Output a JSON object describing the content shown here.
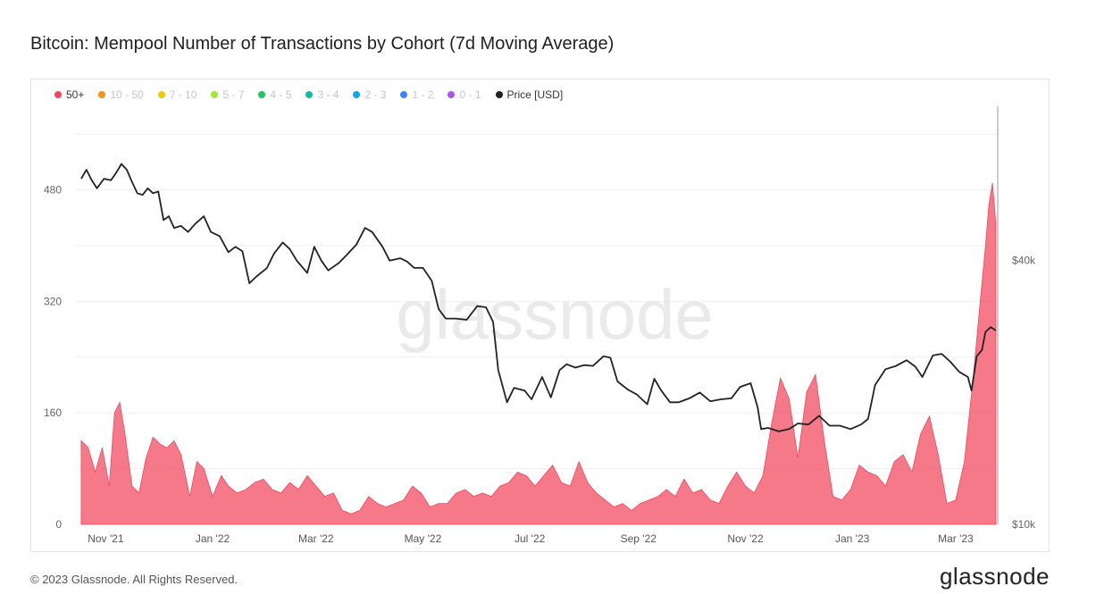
{
  "title": "Bitcoin: Mempool Number of Transactions by Cohort (7d Moving Average)",
  "footer": "© 2023 Glassnode. All Rights Reserved.",
  "brand": "glassnode",
  "watermark": "glassnode",
  "legend": [
    {
      "label": "50+",
      "color": "#f2455c",
      "active": true
    },
    {
      "label": "10 - 50",
      "color": "#f7931a",
      "active": false
    },
    {
      "label": "7 - 10",
      "color": "#f2c70c",
      "active": false
    },
    {
      "label": "5 - 7",
      "color": "#a3e635",
      "active": false
    },
    {
      "label": "4 - 5",
      "color": "#22c55e",
      "active": false
    },
    {
      "label": "3 - 4",
      "color": "#14b8a6",
      "active": false
    },
    {
      "label": "2 - 3",
      "color": "#0ea5e9",
      "active": false
    },
    {
      "label": "1 - 2",
      "color": "#3b82f6",
      "active": false
    },
    {
      "label": "0 - 1",
      "color": "#a855f7",
      "active": false
    },
    {
      "label": "Price [USD]",
      "color": "#222222",
      "active": true
    }
  ],
  "chart_data": {
    "type": "area",
    "grid": true,
    "x_range": [
      "2021-10-15",
      "2023-03-25"
    ],
    "x_ticks": [
      {
        "date": "2021-11-01",
        "label": "Nov '21"
      },
      {
        "date": "2022-01-01",
        "label": "Jan '22"
      },
      {
        "date": "2022-03-01",
        "label": "Mar '22"
      },
      {
        "date": "2022-05-01",
        "label": "May '22"
      },
      {
        "date": "2022-07-01",
        "label": "Jul '22"
      },
      {
        "date": "2022-09-01",
        "label": "Sep '22"
      },
      {
        "date": "2022-11-01",
        "label": "Nov '22"
      },
      {
        "date": "2023-01-01",
        "label": "Jan '23"
      },
      {
        "date": "2023-03-01",
        "label": "Mar '23"
      }
    ],
    "y_left": {
      "range": [
        0,
        600
      ],
      "ticks": [
        0,
        160,
        320,
        480
      ],
      "tick_labels": [
        "0",
        "160",
        "320",
        "480"
      ]
    },
    "y_right": {
      "scale": "log",
      "range": [
        10000,
        90000
      ],
      "ticks": [
        10000,
        40000
      ],
      "tick_labels": [
        "$10k",
        "$40k"
      ]
    },
    "series": [
      {
        "name": "50+",
        "axis": "left",
        "color": "#f2455c",
        "points": [
          [
            "2021-10-18",
            120
          ],
          [
            "2021-10-22",
            110
          ],
          [
            "2021-10-26",
            75
          ],
          [
            "2021-10-30",
            110
          ],
          [
            "2021-11-03",
            55
          ],
          [
            "2021-11-06",
            160
          ],
          [
            "2021-11-09",
            175
          ],
          [
            "2021-11-12",
            130
          ],
          [
            "2021-11-16",
            55
          ],
          [
            "2021-11-20",
            45
          ],
          [
            "2021-11-24",
            95
          ],
          [
            "2021-11-28",
            125
          ],
          [
            "2021-12-02",
            115
          ],
          [
            "2021-12-06",
            110
          ],
          [
            "2021-12-10",
            120
          ],
          [
            "2021-12-14",
            100
          ],
          [
            "2021-12-19",
            40
          ],
          [
            "2021-12-23",
            90
          ],
          [
            "2021-12-27",
            80
          ],
          [
            "2022-01-01",
            40
          ],
          [
            "2022-01-06",
            70
          ],
          [
            "2022-01-10",
            55
          ],
          [
            "2022-01-15",
            45
          ],
          [
            "2022-01-20",
            50
          ],
          [
            "2022-01-25",
            60
          ],
          [
            "2022-01-30",
            65
          ],
          [
            "2022-02-04",
            50
          ],
          [
            "2022-02-09",
            45
          ],
          [
            "2022-02-14",
            60
          ],
          [
            "2022-02-19",
            50
          ],
          [
            "2022-02-24",
            70
          ],
          [
            "2022-03-01",
            55
          ],
          [
            "2022-03-06",
            40
          ],
          [
            "2022-03-11",
            45
          ],
          [
            "2022-03-16",
            20
          ],
          [
            "2022-03-21",
            15
          ],
          [
            "2022-03-26",
            20
          ],
          [
            "2022-03-31",
            40
          ],
          [
            "2022-04-05",
            30
          ],
          [
            "2022-04-10",
            25
          ],
          [
            "2022-04-15",
            30
          ],
          [
            "2022-04-20",
            35
          ],
          [
            "2022-04-25",
            55
          ],
          [
            "2022-04-30",
            45
          ],
          [
            "2022-05-05",
            25
          ],
          [
            "2022-05-10",
            30
          ],
          [
            "2022-05-15",
            30
          ],
          [
            "2022-05-20",
            45
          ],
          [
            "2022-05-25",
            50
          ],
          [
            "2022-05-30",
            40
          ],
          [
            "2022-06-04",
            45
          ],
          [
            "2022-06-09",
            40
          ],
          [
            "2022-06-14",
            55
          ],
          [
            "2022-06-19",
            60
          ],
          [
            "2022-06-24",
            75
          ],
          [
            "2022-06-29",
            70
          ],
          [
            "2022-07-04",
            55
          ],
          [
            "2022-07-09",
            70
          ],
          [
            "2022-07-14",
            85
          ],
          [
            "2022-07-19",
            60
          ],
          [
            "2022-07-24",
            55
          ],
          [
            "2022-07-29",
            90
          ],
          [
            "2022-08-03",
            60
          ],
          [
            "2022-08-08",
            45
          ],
          [
            "2022-08-13",
            35
          ],
          [
            "2022-08-18",
            25
          ],
          [
            "2022-08-23",
            30
          ],
          [
            "2022-08-28",
            20
          ],
          [
            "2022-09-02",
            30
          ],
          [
            "2022-09-07",
            35
          ],
          [
            "2022-09-12",
            40
          ],
          [
            "2022-09-17",
            50
          ],
          [
            "2022-09-22",
            40
          ],
          [
            "2022-09-27",
            65
          ],
          [
            "2022-10-02",
            45
          ],
          [
            "2022-10-07",
            50
          ],
          [
            "2022-10-12",
            35
          ],
          [
            "2022-10-17",
            30
          ],
          [
            "2022-10-22",
            55
          ],
          [
            "2022-10-27",
            75
          ],
          [
            "2022-11-01",
            55
          ],
          [
            "2022-11-06",
            45
          ],
          [
            "2022-11-11",
            70
          ],
          [
            "2022-11-16",
            145
          ],
          [
            "2022-11-21",
            210
          ],
          [
            "2022-11-26",
            180
          ],
          [
            "2022-12-01",
            95
          ],
          [
            "2022-12-06",
            190
          ],
          [
            "2022-12-11",
            215
          ],
          [
            "2022-12-16",
            120
          ],
          [
            "2022-12-21",
            40
          ],
          [
            "2022-12-26",
            35
          ],
          [
            "2022-12-31",
            50
          ],
          [
            "2023-01-05",
            85
          ],
          [
            "2023-01-10",
            75
          ],
          [
            "2023-01-15",
            70
          ],
          [
            "2023-01-20",
            55
          ],
          [
            "2023-01-25",
            90
          ],
          [
            "2023-01-30",
            100
          ],
          [
            "2023-02-04",
            75
          ],
          [
            "2023-02-09",
            130
          ],
          [
            "2023-02-14",
            155
          ],
          [
            "2023-02-19",
            100
          ],
          [
            "2023-02-24",
            30
          ],
          [
            "2023-03-01",
            35
          ],
          [
            "2023-03-06",
            90
          ],
          [
            "2023-03-11",
            210
          ],
          [
            "2023-03-15",
            320
          ],
          [
            "2023-03-18",
            400
          ],
          [
            "2023-03-20",
            460
          ],
          [
            "2023-03-22",
            490
          ],
          [
            "2023-03-24",
            430
          ]
        ]
      },
      {
        "name": "Price [USD]",
        "axis": "right",
        "color": "#222222",
        "points": [
          [
            "2021-10-18",
            61500
          ],
          [
            "2021-10-21",
            64500
          ],
          [
            "2021-10-24",
            61000
          ],
          [
            "2021-10-27",
            58500
          ],
          [
            "2021-10-31",
            61500
          ],
          [
            "2021-11-04",
            61000
          ],
          [
            "2021-11-07",
            63500
          ],
          [
            "2021-11-10",
            66500
          ],
          [
            "2021-11-13",
            64500
          ],
          [
            "2021-11-16",
            60500
          ],
          [
            "2021-11-19",
            57000
          ],
          [
            "2021-11-22",
            56500
          ],
          [
            "2021-11-25",
            58500
          ],
          [
            "2021-11-28",
            57000
          ],
          [
            "2021-12-01",
            57500
          ],
          [
            "2021-12-04",
            49500
          ],
          [
            "2021-12-07",
            50500
          ],
          [
            "2021-12-10",
            47500
          ],
          [
            "2021-12-14",
            48000
          ],
          [
            "2021-12-18",
            46500
          ],
          [
            "2021-12-22",
            48500
          ],
          [
            "2021-12-27",
            50500
          ],
          [
            "2021-12-31",
            46500
          ],
          [
            "2022-01-05",
            45500
          ],
          [
            "2022-01-10",
            41800
          ],
          [
            "2022-01-14",
            43000
          ],
          [
            "2022-01-18",
            42000
          ],
          [
            "2022-01-22",
            35500
          ],
          [
            "2022-01-26",
            36800
          ],
          [
            "2022-02-01",
            38500
          ],
          [
            "2022-02-05",
            41500
          ],
          [
            "2022-02-10",
            44000
          ],
          [
            "2022-02-14",
            42500
          ],
          [
            "2022-02-18",
            40000
          ],
          [
            "2022-02-24",
            37500
          ],
          [
            "2022-02-28",
            43000
          ],
          [
            "2022-03-04",
            40000
          ],
          [
            "2022-03-08",
            38000
          ],
          [
            "2022-03-14",
            39500
          ],
          [
            "2022-03-18",
            41000
          ],
          [
            "2022-03-24",
            43500
          ],
          [
            "2022-03-29",
            47500
          ],
          [
            "2022-04-02",
            46500
          ],
          [
            "2022-04-08",
            43000
          ],
          [
            "2022-04-12",
            40000
          ],
          [
            "2022-04-18",
            40500
          ],
          [
            "2022-04-22",
            39800
          ],
          [
            "2022-04-26",
            38500
          ],
          [
            "2022-05-01",
            38500
          ],
          [
            "2022-05-06",
            36000
          ],
          [
            "2022-05-10",
            31000
          ],
          [
            "2022-05-14",
            29500
          ],
          [
            "2022-05-20",
            29500
          ],
          [
            "2022-05-26",
            29300
          ],
          [
            "2022-06-01",
            31500
          ],
          [
            "2022-06-06",
            31300
          ],
          [
            "2022-06-10",
            29000
          ],
          [
            "2022-06-13",
            22500
          ],
          [
            "2022-06-18",
            19000
          ],
          [
            "2022-06-22",
            20500
          ],
          [
            "2022-06-28",
            20200
          ],
          [
            "2022-07-02",
            19300
          ],
          [
            "2022-07-08",
            21700
          ],
          [
            "2022-07-13",
            19500
          ],
          [
            "2022-07-18",
            22500
          ],
          [
            "2022-07-22",
            23200
          ],
          [
            "2022-07-27",
            22800
          ],
          [
            "2022-08-01",
            23100
          ],
          [
            "2022-08-06",
            23000
          ],
          [
            "2022-08-12",
            24200
          ],
          [
            "2022-08-16",
            24000
          ],
          [
            "2022-08-20",
            21200
          ],
          [
            "2022-08-26",
            20300
          ],
          [
            "2022-08-31",
            19800
          ],
          [
            "2022-09-06",
            18800
          ],
          [
            "2022-09-10",
            21500
          ],
          [
            "2022-09-14",
            20200
          ],
          [
            "2022-09-19",
            19000
          ],
          [
            "2022-09-24",
            19000
          ],
          [
            "2022-09-30",
            19400
          ],
          [
            "2022-10-06",
            20000
          ],
          [
            "2022-10-12",
            19100
          ],
          [
            "2022-10-18",
            19300
          ],
          [
            "2022-10-24",
            19400
          ],
          [
            "2022-10-29",
            20600
          ],
          [
            "2022-11-04",
            21000
          ],
          [
            "2022-11-08",
            18500
          ],
          [
            "2022-11-10",
            16500
          ],
          [
            "2022-11-14",
            16600
          ],
          [
            "2022-11-20",
            16300
          ],
          [
            "2022-11-26",
            16500
          ],
          [
            "2022-12-01",
            17000
          ],
          [
            "2022-12-07",
            16900
          ],
          [
            "2022-12-13",
            17700
          ],
          [
            "2022-12-19",
            16800
          ],
          [
            "2022-12-25",
            16800
          ],
          [
            "2022-12-31",
            16500
          ],
          [
            "2023-01-06",
            16900
          ],
          [
            "2023-01-10",
            17400
          ],
          [
            "2023-01-14",
            20800
          ],
          [
            "2023-01-20",
            22600
          ],
          [
            "2023-01-26",
            23000
          ],
          [
            "2023-02-01",
            23700
          ],
          [
            "2023-02-06",
            22900
          ],
          [
            "2023-02-10",
            21700
          ],
          [
            "2023-02-16",
            24300
          ],
          [
            "2023-02-21",
            24500
          ],
          [
            "2023-02-26",
            23500
          ],
          [
            "2023-03-03",
            22300
          ],
          [
            "2023-03-08",
            21700
          ],
          [
            "2023-03-10",
            20200
          ],
          [
            "2023-03-13",
            24200
          ],
          [
            "2023-03-16",
            25000
          ],
          [
            "2023-03-18",
            27500
          ],
          [
            "2023-03-21",
            28200
          ],
          [
            "2023-03-24",
            27700
          ]
        ]
      }
    ]
  }
}
